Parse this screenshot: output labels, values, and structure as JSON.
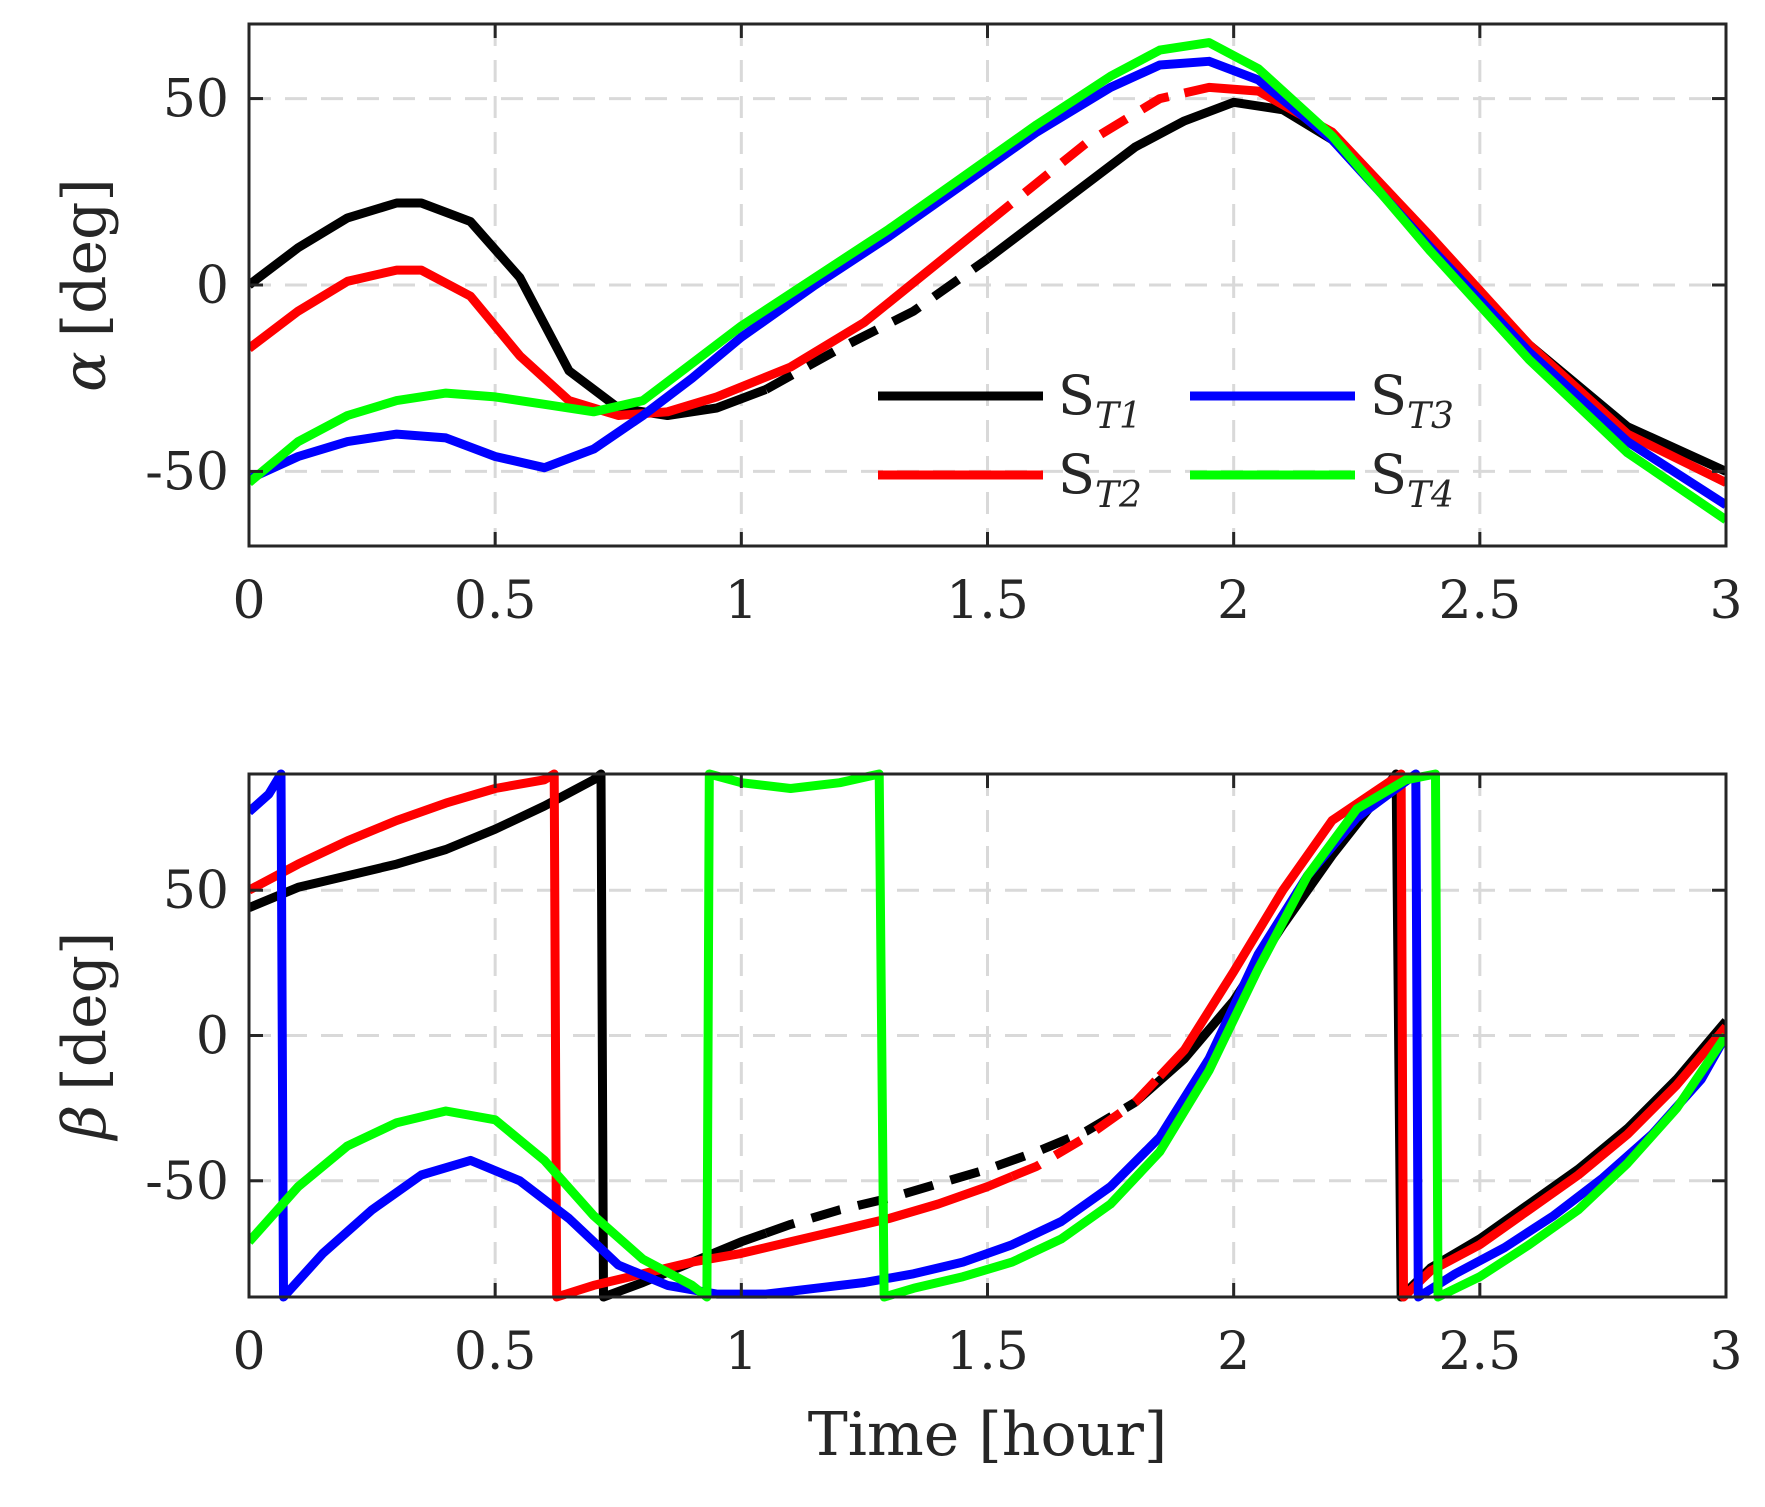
{
  "chart_data": [
    {
      "type": "line",
      "title": "",
      "xlabel": "",
      "ylabel_symbol": "α",
      "ylabel_unit": "[deg]",
      "xlim": [
        0,
        3
      ],
      "ylim": [
        -70,
        70
      ],
      "xticks": [
        0,
        0.5,
        1,
        1.5,
        2,
        2.5,
        3
      ],
      "xtick_labels": [
        "0",
        "0.5",
        "1",
        "1.5",
        "2",
        "2.5",
        "3"
      ],
      "yticks": [
        -50,
        0,
        50
      ],
      "ytick_labels": [
        "-50",
        "0",
        "50"
      ],
      "grid": true,
      "legend": {
        "placement": "lower-right",
        "columns": 2,
        "entries": [
          {
            "prefix": "S",
            "sub": "T1",
            "series": "S_T1"
          },
          {
            "prefix": "S",
            "sub": "T3",
            "series": "S_T3"
          },
          {
            "prefix": "S",
            "sub": "T2",
            "series": "S_T2"
          },
          {
            "prefix": "S",
            "sub": "T4",
            "series": "S_T4"
          }
        ]
      },
      "series": [
        {
          "name": "S_T1",
          "color": "#000000",
          "dashed_range": [
            1.05,
            1.5
          ],
          "x": [
            0,
            0.1,
            0.2,
            0.3,
            0.35,
            0.45,
            0.55,
            0.65,
            0.75,
            0.85,
            0.95,
            1.05,
            1.2,
            1.35,
            1.5,
            1.65,
            1.8,
            1.9,
            2.0,
            2.1,
            2.2,
            2.4,
            2.6,
            2.8,
            3.0
          ],
          "y": [
            0,
            10,
            18,
            22,
            22,
            17,
            2,
            -23,
            -33,
            -35,
            -33,
            -28,
            -17,
            -7,
            7,
            22,
            37,
            44,
            49,
            47,
            39,
            12,
            -16,
            -38,
            -50
          ]
        },
        {
          "name": "S_T2",
          "color": "#ff0000",
          "dashed_range": [
            1.5,
            1.9
          ],
          "x": [
            0,
            0.1,
            0.2,
            0.3,
            0.35,
            0.45,
            0.55,
            0.65,
            0.75,
            0.85,
            0.95,
            1.1,
            1.25,
            1.4,
            1.55,
            1.7,
            1.85,
            1.95,
            2.05,
            2.2,
            2.4,
            2.6,
            2.8,
            3.0
          ],
          "y": [
            -17,
            -7,
            1,
            4,
            4,
            -3,
            -19,
            -31,
            -35,
            -34,
            -30,
            -22,
            -10,
            6,
            22,
            38,
            50,
            53,
            52,
            41,
            13,
            -16,
            -40,
            -53
          ]
        },
        {
          "name": "S_T3",
          "color": "#0000ff",
          "dashed_range": null,
          "x": [
            0,
            0.1,
            0.2,
            0.3,
            0.4,
            0.5,
            0.6,
            0.7,
            0.8,
            0.9,
            1.0,
            1.15,
            1.3,
            1.45,
            1.6,
            1.75,
            1.85,
            1.95,
            2.05,
            2.2,
            2.4,
            2.6,
            2.8,
            3.0
          ],
          "y": [
            -52,
            -46,
            -42,
            -40,
            -41,
            -46,
            -49,
            -44,
            -35,
            -25,
            -14,
            0,
            13,
            27,
            41,
            53,
            59,
            60,
            55,
            39,
            10,
            -18,
            -42,
            -59
          ]
        },
        {
          "name": "S_T4",
          "color": "#00ff00",
          "dashed_range": null,
          "x": [
            0,
            0.1,
            0.2,
            0.3,
            0.4,
            0.5,
            0.6,
            0.7,
            0.8,
            0.9,
            1.0,
            1.15,
            1.3,
            1.45,
            1.6,
            1.75,
            1.85,
            1.95,
            2.05,
            2.2,
            2.4,
            2.6,
            2.8,
            3.0
          ],
          "y": [
            -53,
            -42,
            -35,
            -31,
            -29,
            -30,
            -32,
            -34,
            -31,
            -21,
            -11,
            2,
            15,
            29,
            43,
            56,
            63,
            65,
            58,
            40,
            9,
            -20,
            -45,
            -63
          ]
        }
      ]
    },
    {
      "type": "line",
      "title": "",
      "xlabel": "Time [hour]",
      "ylabel_symbol": "β",
      "ylabel_unit": "[deg]",
      "xlim": [
        0,
        3
      ],
      "ylim": [
        -90,
        90
      ],
      "xticks": [
        0,
        0.5,
        1,
        1.5,
        2,
        2.5,
        3
      ],
      "xtick_labels": [
        "0",
        "0.5",
        "1",
        "1.5",
        "2",
        "2.5",
        "3"
      ],
      "yticks": [
        -50,
        0,
        50
      ],
      "ytick_labels": [
        "-50",
        "0",
        "50"
      ],
      "grid": true,
      "series": [
        {
          "name": "S_T1",
          "color": "#000000",
          "dashed_range": [
            1.05,
            1.78
          ],
          "x": [
            0,
            0.1,
            0.2,
            0.3,
            0.4,
            0.5,
            0.6,
            0.7,
            0.715,
            0.72,
            0.8,
            0.9,
            1.0,
            1.1,
            1.2,
            1.3,
            1.4,
            1.5,
            1.6,
            1.7,
            1.8,
            1.9,
            2.0,
            2.1,
            2.2,
            2.33,
            2.34,
            2.4,
            2.5,
            2.6,
            2.7,
            2.8,
            2.9,
            3.0
          ],
          "y": [
            44,
            51,
            55,
            59,
            64,
            71,
            79,
            88,
            90,
            -90,
            -85,
            -78,
            -71,
            -65,
            -60,
            -56,
            -51,
            -46,
            -40,
            -33,
            -23,
            -8,
            12,
            38,
            62,
            90,
            -90,
            -80,
            -70,
            -58,
            -46,
            -32,
            -15,
            5
          ]
        },
        {
          "name": "S_T2",
          "color": "#ff0000",
          "dashed_range": [
            1.55,
            1.85
          ],
          "x": [
            0,
            0.1,
            0.2,
            0.3,
            0.4,
            0.5,
            0.6,
            0.62,
            0.625,
            0.7,
            0.8,
            0.9,
            1.0,
            1.1,
            1.2,
            1.3,
            1.4,
            1.5,
            1.6,
            1.7,
            1.8,
            1.9,
            2.0,
            2.1,
            2.2,
            2.34,
            2.345,
            2.4,
            2.5,
            2.6,
            2.7,
            2.8,
            2.9,
            3.0
          ],
          "y": [
            50,
            59,
            67,
            74,
            80,
            85,
            88,
            90,
            -90,
            -86,
            -82,
            -78,
            -75,
            -71,
            -67,
            -63,
            -58,
            -52,
            -45,
            -35,
            -23,
            -5,
            22,
            50,
            74,
            90,
            -90,
            -81,
            -72,
            -60,
            -48,
            -34,
            -17,
            3
          ]
        },
        {
          "name": "S_T3",
          "color": "#0000ff",
          "dashed_range": null,
          "x": [
            0,
            0.04,
            0.065,
            0.07,
            0.15,
            0.25,
            0.35,
            0.45,
            0.55,
            0.65,
            0.75,
            0.85,
            0.95,
            1.05,
            1.15,
            1.25,
            1.35,
            1.45,
            1.55,
            1.65,
            1.75,
            1.85,
            1.95,
            2.05,
            2.15,
            2.25,
            2.37,
            2.375,
            2.45,
            2.55,
            2.65,
            2.75,
            2.85,
            2.95,
            3.0
          ],
          "y": [
            77,
            83,
            90,
            -90,
            -75,
            -60,
            -48,
            -43,
            -50,
            -63,
            -79,
            -86,
            -89,
            -89,
            -87,
            -85,
            -82,
            -78,
            -72,
            -64,
            -52,
            -35,
            -8,
            28,
            55,
            75,
            90,
            -90,
            -82,
            -73,
            -62,
            -49,
            -34,
            -15,
            0
          ]
        },
        {
          "name": "S_T4",
          "color": "#00ff00",
          "dashed_range": null,
          "x": [
            0,
            0.1,
            0.2,
            0.3,
            0.4,
            0.5,
            0.6,
            0.7,
            0.8,
            0.9,
            0.93,
            0.935,
            1.0,
            1.1,
            1.2,
            1.28,
            1.29,
            1.35,
            1.45,
            1.55,
            1.65,
            1.75,
            1.85,
            1.95,
            2.05,
            2.15,
            2.25,
            2.35,
            2.41,
            2.415,
            2.5,
            2.6,
            2.7,
            2.8,
            2.9,
            3.0
          ],
          "y": [
            -71,
            -52,
            -38,
            -30,
            -26,
            -29,
            -43,
            -62,
            -77,
            -86,
            -90,
            90,
            87,
            85,
            87,
            90,
            -90,
            -87,
            -83,
            -78,
            -70,
            -58,
            -40,
            -12,
            23,
            55,
            78,
            88,
            90,
            -90,
            -83,
            -72,
            -60,
            -44,
            -25,
            0
          ]
        }
      ]
    }
  ]
}
